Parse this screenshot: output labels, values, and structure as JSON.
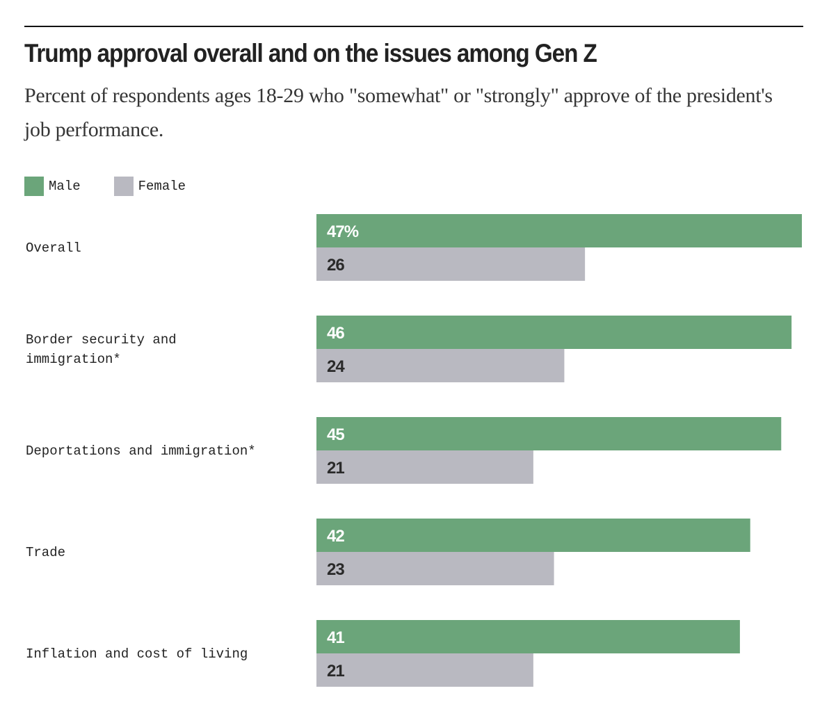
{
  "chart_data": {
    "type": "bar",
    "orientation": "horizontal",
    "title": "Trump approval overall and on the issues among Gen Z",
    "subtitle": "Percent of respondents ages 18-29 who \"somewhat\" or \"strongly\" approve of the president's job performance.",
    "categories": [
      [
        "Overall"
      ],
      [
        "Border security and",
        "immigration*"
      ],
      [
        "Deportations and immigration*"
      ],
      [
        "Trade"
      ],
      [
        "Inflation and cost of living"
      ]
    ],
    "series": [
      {
        "name": "Male",
        "color": "#6ba57a",
        "label_color": "#ffffff",
        "values": [
          47,
          46,
          45,
          42,
          41
        ]
      },
      {
        "name": "Female",
        "color": "#b9b9c1",
        "label_color": "#2a2a2a",
        "values": [
          26,
          24,
          21,
          23,
          21
        ]
      }
    ],
    "first_label_suffix": "%",
    "xlim": [
      0,
      47
    ],
    "grid": false,
    "legend": "top-left",
    "xlabel": "",
    "ylabel": ""
  }
}
